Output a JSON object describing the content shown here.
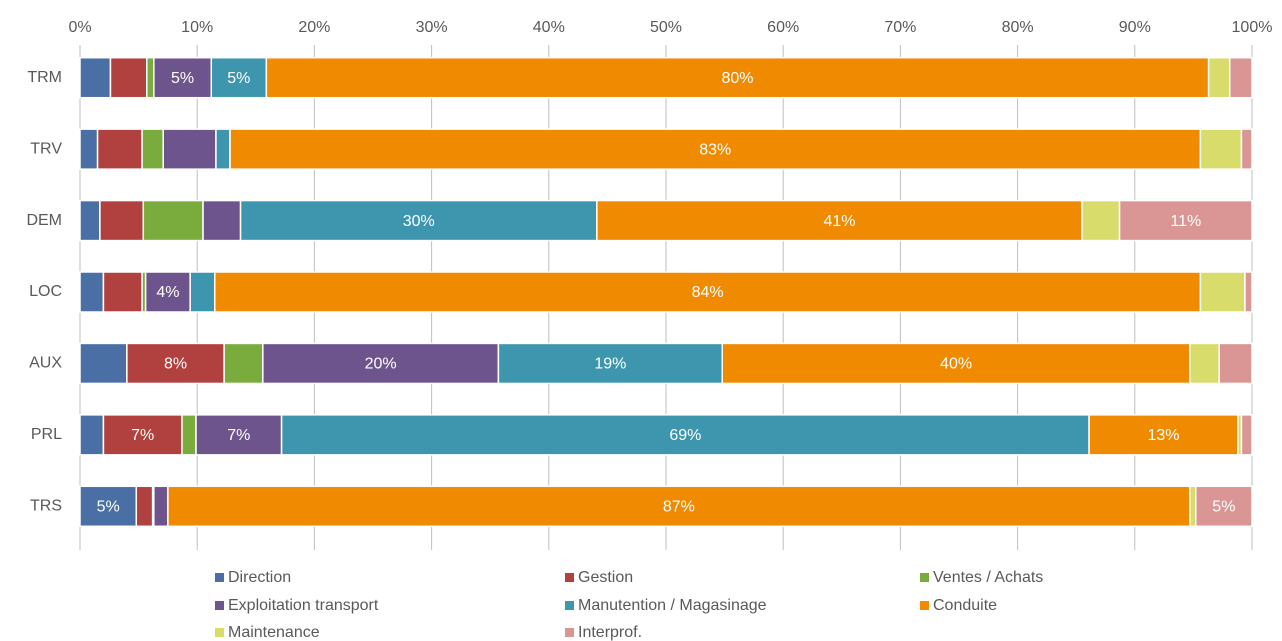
{
  "chart_data": {
    "type": "stacked_bar_horizontal",
    "categories": [
      "TRM",
      "TRV",
      "DEM",
      "LOC",
      "AUX",
      "PRL",
      "TRS"
    ],
    "xlim": [
      0,
      100
    ],
    "xticks": [
      {
        "value": 0,
        "label": "0%"
      },
      {
        "value": 10,
        "label": "10%"
      },
      {
        "value": 20,
        "label": "20%"
      },
      {
        "value": 30,
        "label": "30%"
      },
      {
        "value": 40,
        "label": "40%"
      },
      {
        "value": 50,
        "label": "50%"
      },
      {
        "value": 60,
        "label": "60%"
      },
      {
        "value": 70,
        "label": "70%"
      },
      {
        "value": 80,
        "label": "80%"
      },
      {
        "value": 90,
        "label": "90%"
      },
      {
        "value": 100,
        "label": "100%"
      }
    ],
    "grid": true,
    "legend": "bottom",
    "series": [
      {
        "name": "Direction",
        "color": "#4a6fa5",
        "values": [
          2.6,
          1.5,
          1.7,
          2.0,
          4.0,
          2.0,
          4.8
        ],
        "value_labels": [
          null,
          null,
          null,
          null,
          null,
          null,
          "5%"
        ]
      },
      {
        "name": "Gestion",
        "color": "#b0413e",
        "values": [
          3.1,
          3.8,
          3.7,
          3.3,
          8.3,
          6.7,
          1.4
        ],
        "value_labels": [
          null,
          null,
          null,
          null,
          "8%",
          "7%",
          null
        ]
      },
      {
        "name": "Ventes / Achats",
        "color": "#7aab3d",
        "values": [
          0.6,
          1.8,
          5.1,
          0.3,
          3.3,
          1.2,
          0.1
        ],
        "value_labels": [
          null,
          null,
          null,
          null,
          null,
          null,
          null
        ]
      },
      {
        "name": "Exploitation transport",
        "color": "#6e548d",
        "values": [
          4.9,
          4.5,
          3.2,
          3.8,
          20.1,
          7.3,
          1.2
        ],
        "value_labels": [
          "5%",
          null,
          null,
          "4%",
          "20%",
          "7%",
          null
        ]
      },
      {
        "name": "Manutention / Magasinage",
        "color": "#3d96ae",
        "values": [
          4.7,
          1.2,
          30.4,
          2.1,
          19.1,
          68.9,
          0
        ],
        "value_labels": [
          "5%",
          null,
          "30%",
          null,
          "19%",
          "69%",
          null
        ]
      },
      {
        "name": "Conduite",
        "color": "#f08a00",
        "values": [
          80.4,
          82.8,
          41.4,
          84.1,
          39.9,
          12.7,
          87.2
        ],
        "value_labels": [
          "80%",
          "83%",
          "41%",
          "84%",
          "40%",
          "13%",
          "87%"
        ]
      },
      {
        "name": "Maintenance",
        "color": "#d7dc6b",
        "values": [
          1.8,
          3.5,
          3.2,
          3.8,
          2.5,
          0.3,
          0.5
        ],
        "value_labels": [
          null,
          null,
          null,
          null,
          null,
          null,
          null
        ]
      },
      {
        "name": "Interprof.",
        "color": "#d99694",
        "values": [
          1.9,
          0.9,
          11.3,
          0.6,
          2.8,
          0.9,
          4.8
        ],
        "value_labels": [
          null,
          null,
          "11%",
          null,
          null,
          null,
          "5%"
        ]
      }
    ]
  }
}
